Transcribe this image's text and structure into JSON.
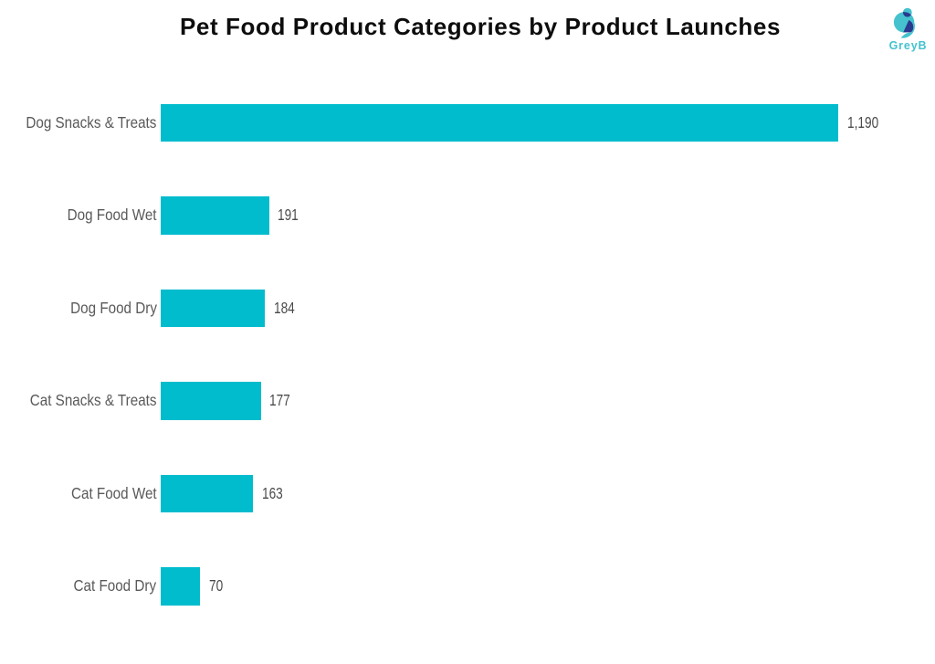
{
  "header": {
    "title": "Pet Food Product Categories by Product Launches"
  },
  "logo": {
    "text": "GreyB",
    "teal": "#45C2CE",
    "dark_blue": "#2A3A8F"
  },
  "chart_data": {
    "type": "bar",
    "orientation": "horizontal",
    "title": "Pet Food Product Categories by Product Launches",
    "categories": [
      "Dog Snacks & Treats",
      "Dog Food Wet",
      "Dog Food Dry",
      "Cat Snacks & Treats",
      "Cat Food Wet",
      "Cat Food Dry"
    ],
    "values": [
      1190,
      191,
      184,
      177,
      163,
      70
    ],
    "value_labels": [
      "1,190",
      "191",
      "184",
      "177",
      "163",
      "70"
    ],
    "xlim": [
      0,
      1190
    ],
    "bar_color": "#00bccd",
    "category_label_color": "#595959",
    "value_label_color": "#4a4a4a",
    "grid": false,
    "axis_lines_visible": false,
    "legend": "none"
  }
}
